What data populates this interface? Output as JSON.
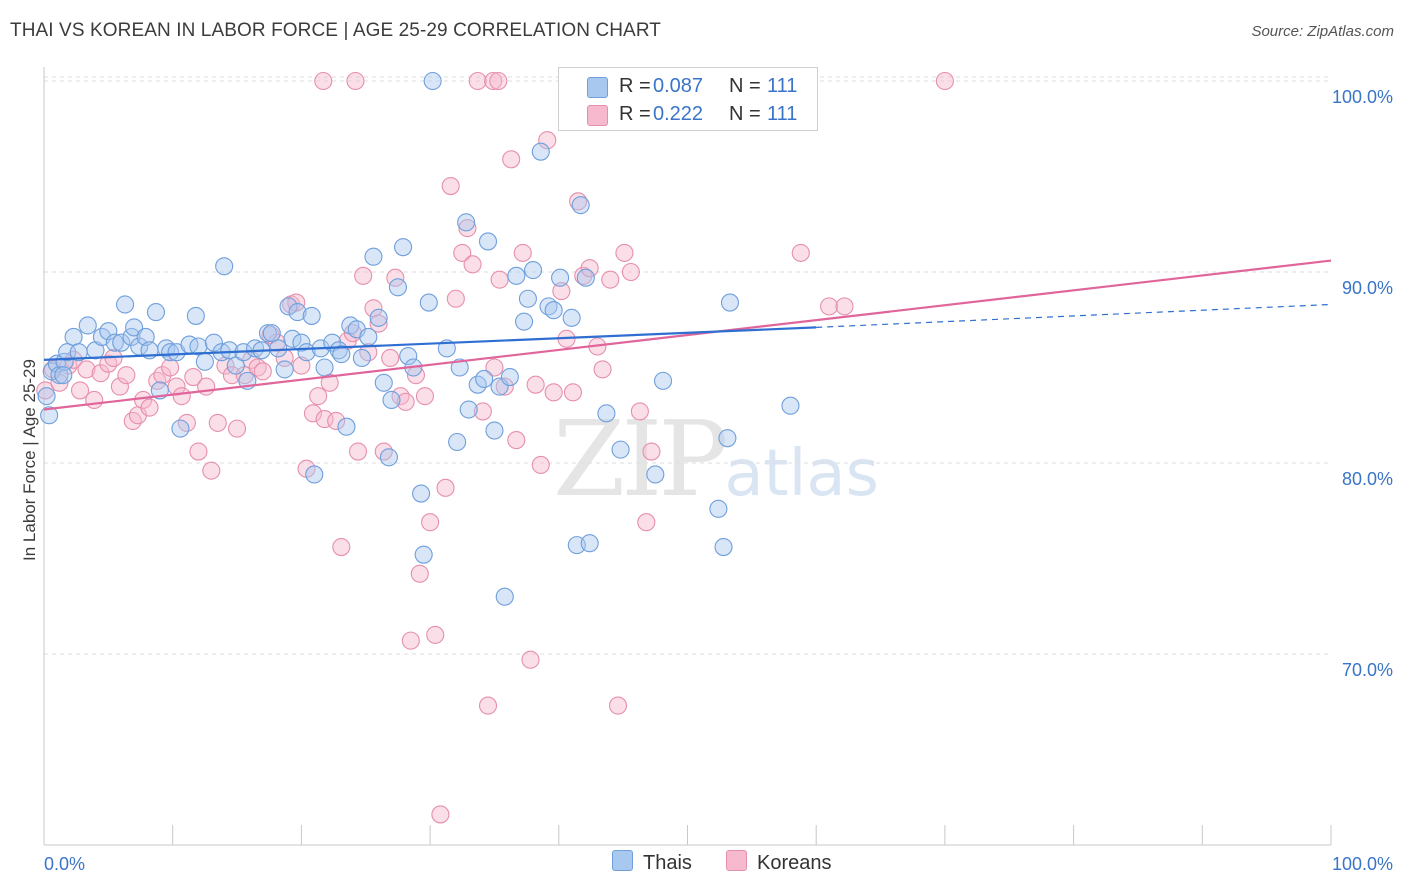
{
  "title": "THAI VS KOREAN IN LABOR FORCE | AGE 25-29 CORRELATION CHART",
  "source": "Source: ZipAtlas.com",
  "watermark": {
    "zip": "ZIP",
    "atlas": "atlas"
  },
  "legend": {
    "rows": [
      {
        "r_label": "R =",
        "r_value": "0.087",
        "n_label": "N =",
        "n_value": "111",
        "color": "#a9c8f0"
      },
      {
        "r_label": "R =",
        "r_value": "0.222",
        "n_label": "N =",
        "n_value": "111",
        "color": "#f6b9cd"
      }
    ]
  },
  "bottom_legend": {
    "thais": "Thais",
    "koreans": "Koreans"
  },
  "colors": {
    "thais_fill": "#a9c8f0",
    "thais_stroke": "#6f9fdc",
    "thais_line": "#2f6fd1",
    "koreans_fill": "#f6b9cd",
    "koreans_stroke": "#e68fac",
    "koreans_line": "#e0659a",
    "tick_label": "#3a74c8",
    "grid": "#dedede"
  },
  "chart_data": {
    "type": "scatter",
    "title": "THAI VS KOREAN IN LABOR FORCE | AGE 25-29 CORRELATION CHART",
    "xlabel": "",
    "ylabel": "In Labor Force | Age 25-29",
    "xlim": [
      0,
      100
    ],
    "ylim": [
      60,
      100
    ],
    "x_tick_labels": [
      "0.0%",
      "100.0%"
    ],
    "y_ticks": [
      70,
      80,
      90,
      100
    ],
    "y_tick_labels": [
      "70.0%",
      "80.0%",
      "90.0%",
      "100.0%"
    ],
    "grid": true,
    "legend_position": "top-center",
    "series": [
      {
        "name": "Thais",
        "R": 0.087,
        "N": 111,
        "trend": {
          "x": [
            0,
            60
          ],
          "y": [
            85.4,
            87.1
          ],
          "dashed_extension": {
            "x": [
              60,
              100
            ],
            "y": [
              87.1,
              88.3
            ]
          }
        },
        "points": [
          [
            0.2,
            83.5
          ],
          [
            0.6,
            84.8
          ],
          [
            1.0,
            85.2
          ],
          [
            1.2,
            84.6
          ],
          [
            1.6,
            85.3
          ],
          [
            1.8,
            85.8
          ],
          [
            2.3,
            86.6
          ],
          [
            2.7,
            85.8
          ],
          [
            3.4,
            87.2
          ],
          [
            4.0,
            85.9
          ],
          [
            4.5,
            86.6
          ],
          [
            5.0,
            86.9
          ],
          [
            5.5,
            86.3
          ],
          [
            6.0,
            86.3
          ],
          [
            6.3,
            88.3
          ],
          [
            6.8,
            86.6
          ],
          [
            7.0,
            87.1
          ],
          [
            7.4,
            86.1
          ],
          [
            7.9,
            86.6
          ],
          [
            8.2,
            85.9
          ],
          [
            8.7,
            87.9
          ],
          [
            9.0,
            83.8
          ],
          [
            9.5,
            86.0
          ],
          [
            9.8,
            85.8
          ],
          [
            10.3,
            85.8
          ],
          [
            10.6,
            81.8
          ],
          [
            11.3,
            86.2
          ],
          [
            11.8,
            87.7
          ],
          [
            12.0,
            86.1
          ],
          [
            12.5,
            85.3
          ],
          [
            13.2,
            86.3
          ],
          [
            13.8,
            85.8
          ],
          [
            14.0,
            90.3
          ],
          [
            14.4,
            85.9
          ],
          [
            14.9,
            85.1
          ],
          [
            15.5,
            85.8
          ],
          [
            15.8,
            84.3
          ],
          [
            16.4,
            86.0
          ],
          [
            16.9,
            85.9
          ],
          [
            17.4,
            86.8
          ],
          [
            17.7,
            86.8
          ],
          [
            18.2,
            86.0
          ],
          [
            18.7,
            84.9
          ],
          [
            19.0,
            88.2
          ],
          [
            19.3,
            86.5
          ],
          [
            19.7,
            87.9
          ],
          [
            20.0,
            86.3
          ],
          [
            20.4,
            85.8
          ],
          [
            20.8,
            87.7
          ],
          [
            21.0,
            79.4
          ],
          [
            21.5,
            86.0
          ],
          [
            21.8,
            85.0
          ],
          [
            22.4,
            86.3
          ],
          [
            22.9,
            85.9
          ],
          [
            23.1,
            85.7
          ],
          [
            23.5,
            81.9
          ],
          [
            23.8,
            87.2
          ],
          [
            24.3,
            87.0
          ],
          [
            24.7,
            85.5
          ],
          [
            25.2,
            86.6
          ],
          [
            25.6,
            90.8
          ],
          [
            26.0,
            87.6
          ],
          [
            26.4,
            84.2
          ],
          [
            26.8,
            80.3
          ],
          [
            27.0,
            83.3
          ],
          [
            27.5,
            89.2
          ],
          [
            27.9,
            91.3
          ],
          [
            28.3,
            85.6
          ],
          [
            28.7,
            85.0
          ],
          [
            29.3,
            78.4
          ],
          [
            29.5,
            75.2
          ],
          [
            29.9,
            88.4
          ],
          [
            30.2,
            100.0
          ],
          [
            31.3,
            86.0
          ],
          [
            32.1,
            81.1
          ],
          [
            32.3,
            85.0
          ],
          [
            32.8,
            92.6
          ],
          [
            33.0,
            82.8
          ],
          [
            33.7,
            84.1
          ],
          [
            34.2,
            84.4
          ],
          [
            34.5,
            91.6
          ],
          [
            35.0,
            81.7
          ],
          [
            35.4,
            84.0
          ],
          [
            35.8,
            73.0
          ],
          [
            36.2,
            84.5
          ],
          [
            36.7,
            89.8
          ],
          [
            37.3,
            87.4
          ],
          [
            37.6,
            88.6
          ],
          [
            38.0,
            90.1
          ],
          [
            38.6,
            96.3
          ],
          [
            39.2,
            88.2
          ],
          [
            39.6,
            88.0
          ],
          [
            40.1,
            89.7
          ],
          [
            41.0,
            87.6
          ],
          [
            41.4,
            75.7
          ],
          [
            41.7,
            93.5
          ],
          [
            42.1,
            89.7
          ],
          [
            42.4,
            75.8
          ],
          [
            43.7,
            82.6
          ],
          [
            44.8,
            80.7
          ],
          [
            45.0,
            100.0
          ],
          [
            46.1,
            100.0
          ],
          [
            47.5,
            79.4
          ],
          [
            48.1,
            84.3
          ],
          [
            52.4,
            77.6
          ],
          [
            52.8,
            75.6
          ],
          [
            53.1,
            81.3
          ],
          [
            53.3,
            88.4
          ],
          [
            58.0,
            83.0
          ],
          [
            1.5,
            84.6
          ],
          [
            0.4,
            82.5
          ]
        ]
      },
      {
        "name": "Koreans",
        "R": 0.222,
        "N": 111,
        "trend": {
          "x": [
            0,
            100
          ],
          "y": [
            82.8,
            90.6
          ]
        },
        "points": [
          [
            0.1,
            83.8
          ],
          [
            0.7,
            84.9
          ],
          [
            1.2,
            84.2
          ],
          [
            1.9,
            85.1
          ],
          [
            2.3,
            85.4
          ],
          [
            2.8,
            83.8
          ],
          [
            3.3,
            84.9
          ],
          [
            3.9,
            83.3
          ],
          [
            4.4,
            84.7
          ],
          [
            5.0,
            85.2
          ],
          [
            5.4,
            85.5
          ],
          [
            5.9,
            84.0
          ],
          [
            6.4,
            84.6
          ],
          [
            6.9,
            82.2
          ],
          [
            7.3,
            82.5
          ],
          [
            7.7,
            83.3
          ],
          [
            8.2,
            82.9
          ],
          [
            8.8,
            84.3
          ],
          [
            9.2,
            84.6
          ],
          [
            9.8,
            85.0
          ],
          [
            10.3,
            84.0
          ],
          [
            10.7,
            83.5
          ],
          [
            11.1,
            82.1
          ],
          [
            11.6,
            84.5
          ],
          [
            12.0,
            80.6
          ],
          [
            12.6,
            84.0
          ],
          [
            13.0,
            79.6
          ],
          [
            13.5,
            82.1
          ],
          [
            14.1,
            85.1
          ],
          [
            14.6,
            84.6
          ],
          [
            15.0,
            81.8
          ],
          [
            15.6,
            84.6
          ],
          [
            16.1,
            85.4
          ],
          [
            16.6,
            85.0
          ],
          [
            17.0,
            84.8
          ],
          [
            17.6,
            86.7
          ],
          [
            18.1,
            86.3
          ],
          [
            18.7,
            85.5
          ],
          [
            19.2,
            88.3
          ],
          [
            19.6,
            88.4
          ],
          [
            20.0,
            85.1
          ],
          [
            20.4,
            79.7
          ],
          [
            20.9,
            82.6
          ],
          [
            21.3,
            83.5
          ],
          [
            21.8,
            82.3
          ],
          [
            22.2,
            84.2
          ],
          [
            22.7,
            82.2
          ],
          [
            23.1,
            75.6
          ],
          [
            23.6,
            86.4
          ],
          [
            24.0,
            86.8
          ],
          [
            24.4,
            80.6
          ],
          [
            24.8,
            89.8
          ],
          [
            25.2,
            85.8
          ],
          [
            25.6,
            88.1
          ],
          [
            26.0,
            87.3
          ],
          [
            26.4,
            80.6
          ],
          [
            26.9,
            85.5
          ],
          [
            27.3,
            89.7
          ],
          [
            27.7,
            83.5
          ],
          [
            28.1,
            83.2
          ],
          [
            28.5,
            70.7
          ],
          [
            28.9,
            84.6
          ],
          [
            29.2,
            74.2
          ],
          [
            29.6,
            83.5
          ],
          [
            30.0,
            76.9
          ],
          [
            30.4,
            71.0
          ],
          [
            30.8,
            61.6
          ],
          [
            31.2,
            78.7
          ],
          [
            31.6,
            94.5
          ],
          [
            32.0,
            88.6
          ],
          [
            32.5,
            91.0
          ],
          [
            32.9,
            92.3
          ],
          [
            33.3,
            90.4
          ],
          [
            33.7,
            100.0
          ],
          [
            34.1,
            82.7
          ],
          [
            34.5,
            67.3
          ],
          [
            35.0,
            85.0
          ],
          [
            35.4,
            89.6
          ],
          [
            35.8,
            84.0
          ],
          [
            36.3,
            95.9
          ],
          [
            36.7,
            81.2
          ],
          [
            37.2,
            91.0
          ],
          [
            37.8,
            69.7
          ],
          [
            38.2,
            84.1
          ],
          [
            38.6,
            79.9
          ],
          [
            39.1,
            96.9
          ],
          [
            39.6,
            83.7
          ],
          [
            40.2,
            89.0
          ],
          [
            40.6,
            86.5
          ],
          [
            41.1,
            83.7
          ],
          [
            41.5,
            93.7
          ],
          [
            41.9,
            89.8
          ],
          [
            42.4,
            90.2
          ],
          [
            43.0,
            86.1
          ],
          [
            43.4,
            84.9
          ],
          [
            44.0,
            89.6
          ],
          [
            44.6,
            67.3
          ],
          [
            45.1,
            91.0
          ],
          [
            45.6,
            90.0
          ],
          [
            46.3,
            82.7
          ],
          [
            46.8,
            76.9
          ],
          [
            47.2,
            80.6
          ],
          [
            21.7,
            100.0
          ],
          [
            24.2,
            100.0
          ],
          [
            34.9,
            100.0
          ],
          [
            35.3,
            100.0
          ],
          [
            53.1,
            100.0
          ],
          [
            58.8,
            91.0
          ],
          [
            61.0,
            88.2
          ],
          [
            62.2,
            88.2
          ],
          [
            70.0,
            100.0
          ]
        ]
      }
    ]
  }
}
